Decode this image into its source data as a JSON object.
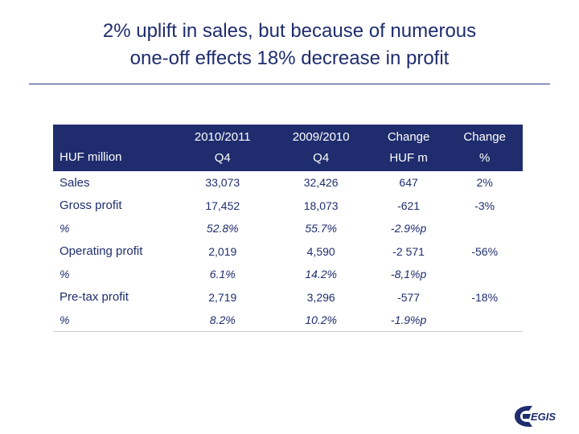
{
  "slide": {
    "title_line1": "2% uplift in sales, but because of numerous",
    "title_line2": "one-off effects 18% decrease in profit"
  },
  "table": {
    "headers": [
      {
        "line1": "",
        "line2": "HUF million"
      },
      {
        "line1": "2010/2011",
        "line2": "Q4"
      },
      {
        "line1": "2009/2010",
        "line2": "Q4"
      },
      {
        "line1": "Change",
        "line2": "HUF m"
      },
      {
        "line1": "Change",
        "line2": "%"
      }
    ],
    "rows": [
      {
        "label": "Sales",
        "c1": "33,073",
        "c2": "32,426",
        "c3": "647",
        "c4": "2%"
      },
      {
        "label": "Gross profit",
        "c1": "17,452",
        "c2": "18,073",
        "c3": "-621",
        "c4": "-3%"
      },
      {
        "label": "%",
        "c1": "52.8%",
        "c2": "55.7%",
        "c3": "-2.9%p",
        "c4": ""
      },
      {
        "label": "Operating profit",
        "c1": "2,019",
        "c2": "4,590",
        "c3": "-2 571",
        "c4": "-56%"
      },
      {
        "label": "%",
        "c1": "6.1%",
        "c2": "14.2%",
        "c3": "-8,1%p",
        "c4": ""
      },
      {
        "label": "Pre-tax profit",
        "c1": "2,719",
        "c2": "3,296",
        "c3": "-577",
        "c4": "-18%"
      },
      {
        "label": "%",
        "c1": "8.2%",
        "c2": "10.2%",
        "c3": "-1.9%p",
        "c4": ""
      }
    ]
  },
  "logo": {
    "text": "EGIS",
    "color": "#1f2d6e"
  }
}
